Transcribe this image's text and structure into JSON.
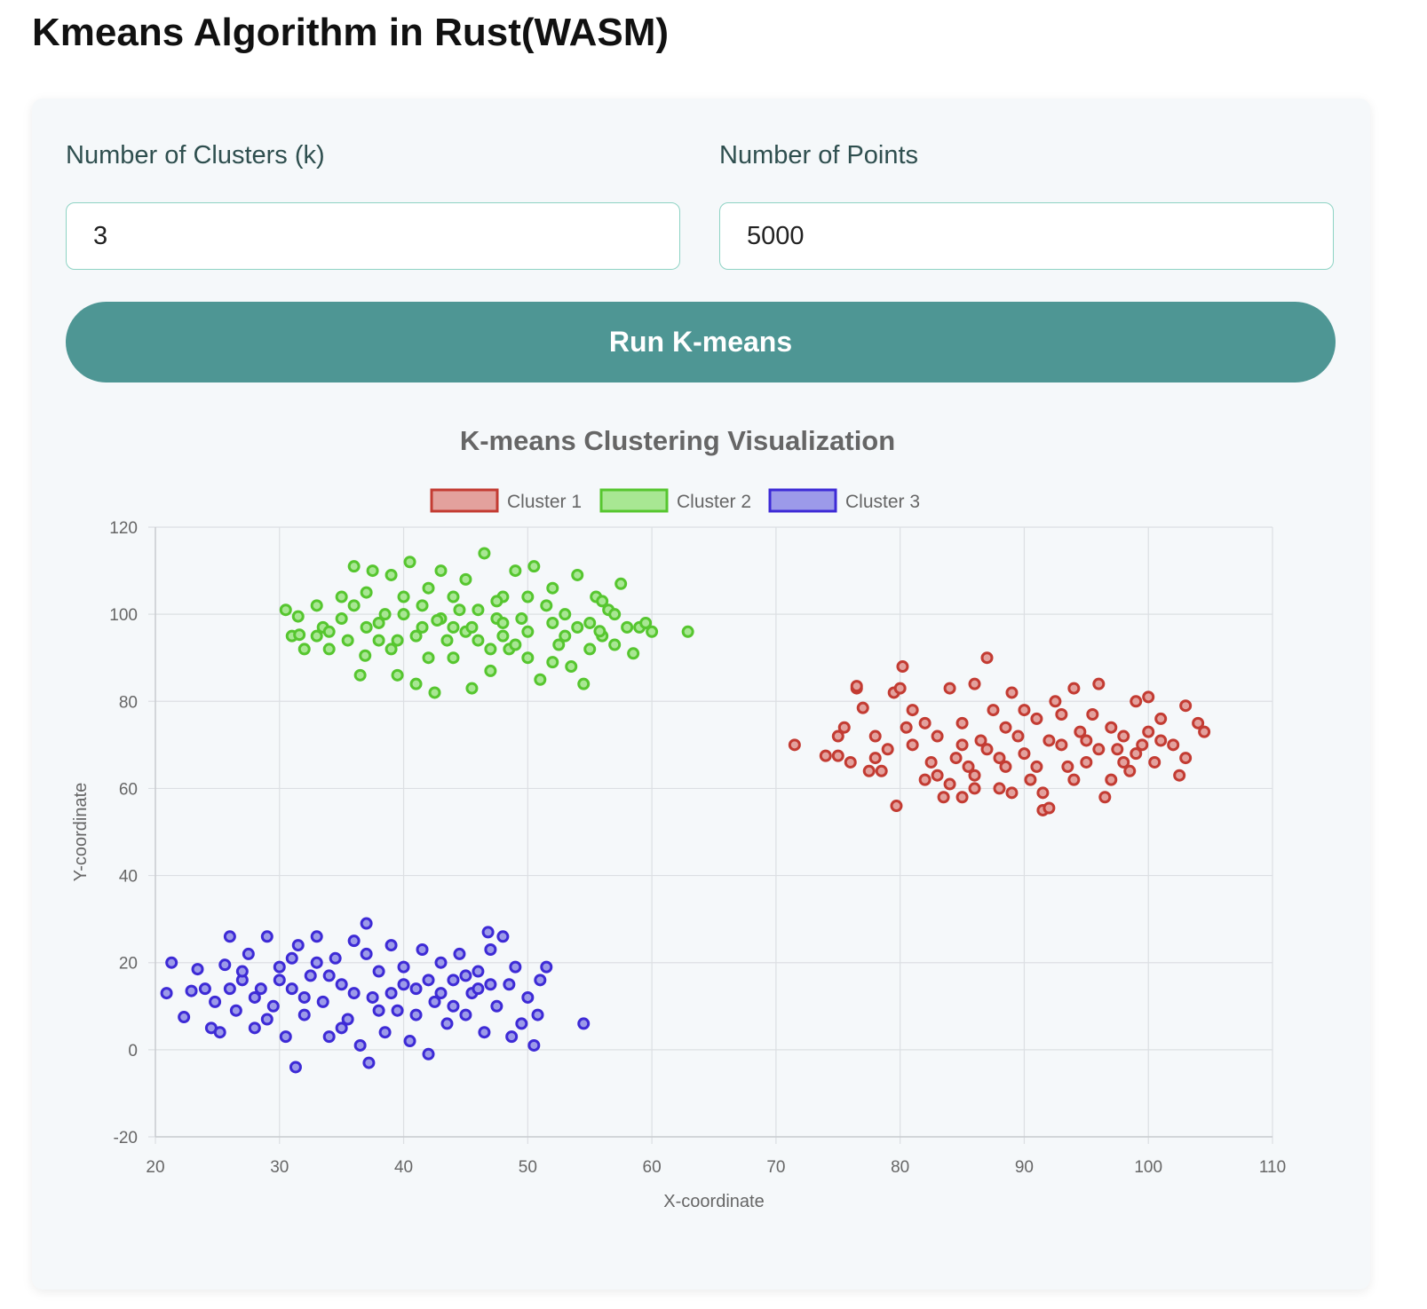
{
  "page": {
    "title": "Kmeans Algorithm in Rust(WASM)"
  },
  "form": {
    "clusters_label": "Number of Clusters (k)",
    "clusters_value": "3",
    "points_label": "Number of Points",
    "points_value": "5000",
    "run_label": "Run K-means"
  },
  "colors": {
    "accent": "#4e9694",
    "input_border": "#8ed3c4",
    "card_bg": "#f5f8fa"
  },
  "chart_data": {
    "type": "scatter",
    "title": "K-means Clustering Visualization",
    "xlabel": "X-coordinate",
    "ylabel": "Y-coordinate",
    "xlim": [
      20,
      110
    ],
    "ylim": [
      -20,
      120
    ],
    "xticks": [
      20,
      30,
      40,
      50,
      60,
      70,
      80,
      90,
      100,
      110
    ],
    "yticks": [
      -20,
      0,
      20,
      40,
      60,
      80,
      100,
      120
    ],
    "grid": true,
    "legend_position": "top-center",
    "series": [
      {
        "name": "Cluster 1",
        "stroke": "#c33b32",
        "fill": "#e3a19d",
        "points": [
          [
            71.5,
            70
          ],
          [
            74,
            67.5
          ],
          [
            75,
            67.5
          ],
          [
            76,
            66
          ],
          [
            76.5,
            83
          ],
          [
            76.5,
            83.5
          ],
          [
            75,
            72
          ],
          [
            75.5,
            74
          ],
          [
            77,
            78.5
          ],
          [
            77.5,
            64
          ],
          [
            78.5,
            64
          ],
          [
            79.5,
            82
          ],
          [
            80,
            83
          ],
          [
            80.2,
            88
          ],
          [
            79.7,
            56
          ],
          [
            81,
            78
          ],
          [
            82,
            75
          ],
          [
            83,
            72
          ],
          [
            84,
            83
          ],
          [
            85,
            70
          ],
          [
            85.5,
            65
          ],
          [
            86,
            84
          ],
          [
            87,
            90
          ],
          [
            87.5,
            78
          ],
          [
            88,
            60
          ],
          [
            88.5,
            74
          ],
          [
            89,
            82
          ],
          [
            90,
            68
          ],
          [
            90.5,
            62
          ],
          [
            91,
            76
          ],
          [
            91.5,
            55
          ],
          [
            92,
            55.5
          ],
          [
            92.5,
            80
          ],
          [
            93,
            70
          ],
          [
            94,
            83
          ],
          [
            95,
            66
          ],
          [
            96,
            84
          ],
          [
            96.5,
            58
          ],
          [
            97,
            62
          ],
          [
            98,
            72
          ],
          [
            99,
            80
          ],
          [
            100,
            81
          ],
          [
            101,
            76
          ],
          [
            102,
            70
          ],
          [
            102.5,
            63
          ],
          [
            103,
            79
          ],
          [
            104,
            75
          ],
          [
            104.5,
            73
          ],
          [
            103,
            67
          ],
          [
            100.5,
            66
          ],
          [
            99.5,
            70
          ],
          [
            98.5,
            64
          ],
          [
            97.5,
            69
          ],
          [
            95.5,
            77
          ],
          [
            94.5,
            73
          ],
          [
            93.5,
            65
          ],
          [
            92,
            71
          ],
          [
            89.5,
            72
          ],
          [
            88,
            67
          ],
          [
            86.5,
            71
          ],
          [
            85,
            75
          ],
          [
            84,
            61
          ],
          [
            83.5,
            58
          ],
          [
            82.5,
            66
          ],
          [
            81,
            70
          ],
          [
            80.5,
            74
          ],
          [
            79,
            69
          ],
          [
            78,
            67
          ],
          [
            78,
            72
          ],
          [
            82,
            62
          ],
          [
            84.5,
            67
          ],
          [
            86,
            63
          ],
          [
            87,
            69
          ],
          [
            88.5,
            65
          ],
          [
            90,
            78
          ],
          [
            91,
            65
          ],
          [
            93,
            77
          ],
          [
            94,
            62
          ],
          [
            95,
            71
          ],
          [
            96,
            69
          ],
          [
            97,
            74
          ],
          [
            98,
            66
          ],
          [
            99,
            68
          ],
          [
            100,
            73
          ],
          [
            101,
            71
          ],
          [
            91.5,
            59
          ],
          [
            89,
            59
          ],
          [
            86,
            60
          ],
          [
            85,
            58
          ],
          [
            83,
            63
          ]
        ]
      },
      {
        "name": "Cluster 2",
        "stroke": "#56c62f",
        "fill": "#a8e793",
        "points": [
          [
            30.5,
            101
          ],
          [
            31,
            95
          ],
          [
            31.5,
            99.5
          ],
          [
            32,
            92
          ],
          [
            33,
            102
          ],
          [
            33.5,
            97
          ],
          [
            34,
            92
          ],
          [
            35,
            104
          ],
          [
            35.5,
            94
          ],
          [
            36,
            111
          ],
          [
            36.5,
            86
          ],
          [
            37,
            105
          ],
          [
            37.5,
            110
          ],
          [
            38,
            98
          ],
          [
            38.5,
            100
          ],
          [
            39,
            109
          ],
          [
            39.5,
            86
          ],
          [
            40,
            104
          ],
          [
            40.5,
            112
          ],
          [
            41,
            84
          ],
          [
            41.5,
            97
          ],
          [
            42,
            106
          ],
          [
            42.5,
            82
          ],
          [
            43,
            110
          ],
          [
            44,
            90
          ],
          [
            44.5,
            101
          ],
          [
            45,
            108
          ],
          [
            45.5,
            83
          ],
          [
            46,
            94
          ],
          [
            46.5,
            114
          ],
          [
            47,
            87
          ],
          [
            47.5,
            99
          ],
          [
            48,
            104
          ],
          [
            48.5,
            92
          ],
          [
            49,
            110
          ],
          [
            50,
            96
          ],
          [
            50.5,
            111
          ],
          [
            51,
            85
          ],
          [
            52,
            106
          ],
          [
            52.5,
            93
          ],
          [
            53,
            100
          ],
          [
            53.5,
            88
          ],
          [
            54,
            109
          ],
          [
            54.5,
            84
          ],
          [
            55,
            98
          ],
          [
            55.5,
            104
          ],
          [
            56,
            95
          ],
          [
            56.5,
            101
          ],
          [
            57,
            93
          ],
          [
            57.5,
            107
          ],
          [
            58,
            97
          ],
          [
            59,
            97
          ],
          [
            59.5,
            98
          ],
          [
            60,
            96
          ],
          [
            58.5,
            91
          ],
          [
            56,
            103
          ],
          [
            54,
            97
          ],
          [
            51.5,
            102
          ],
          [
            49.5,
            99
          ],
          [
            47,
            92
          ],
          [
            45,
            96
          ],
          [
            43,
            99
          ],
          [
            41,
            95
          ],
          [
            39,
            92
          ],
          [
            37,
            97
          ],
          [
            35,
            99
          ],
          [
            34,
            96
          ],
          [
            33,
            95
          ],
          [
            38,
            94
          ],
          [
            42,
            90
          ],
          [
            44,
            104
          ],
          [
            46,
            101
          ],
          [
            48,
            95
          ],
          [
            50,
            90
          ],
          [
            52,
            98
          ],
          [
            53,
            95
          ],
          [
            55,
            92
          ],
          [
            57,
            100
          ],
          [
            36,
            102
          ],
          [
            40,
            100
          ],
          [
            41.5,
            102
          ],
          [
            43.5,
            94
          ],
          [
            45.5,
            97
          ],
          [
            47.5,
            103
          ],
          [
            49,
            93
          ],
          [
            50,
            104
          ],
          [
            52,
            89
          ],
          [
            39.5,
            94
          ],
          [
            44,
            97
          ],
          [
            48,
            98
          ],
          [
            62.9,
            96
          ],
          [
            31.6,
            95.3
          ],
          [
            55.8,
            96.1
          ],
          [
            36.9,
            90.5
          ],
          [
            42.7,
            98.6
          ]
        ]
      },
      {
        "name": "Cluster 3",
        "stroke": "#3d2ad6",
        "fill": "#9c9ae9",
        "points": [
          [
            20.9,
            13
          ],
          [
            21.3,
            20
          ],
          [
            22.3,
            7.5
          ],
          [
            22.9,
            13.5
          ],
          [
            23.4,
            18.5
          ],
          [
            24,
            14
          ],
          [
            24.5,
            5
          ],
          [
            24.8,
            11
          ],
          [
            25.2,
            4
          ],
          [
            25.6,
            19.5
          ],
          [
            26,
            26
          ],
          [
            26.5,
            9
          ],
          [
            27,
            16
          ],
          [
            27.5,
            22
          ],
          [
            28,
            5
          ],
          [
            28.5,
            14
          ],
          [
            29,
            26
          ],
          [
            29.5,
            10
          ],
          [
            30,
            19
          ],
          [
            30.5,
            3
          ],
          [
            31,
            14
          ],
          [
            31.3,
            -4
          ],
          [
            31.5,
            24
          ],
          [
            32,
            8
          ],
          [
            32.5,
            17
          ],
          [
            33,
            26
          ],
          [
            33.5,
            11
          ],
          [
            34,
            3
          ],
          [
            34.5,
            21
          ],
          [
            35,
            15
          ],
          [
            35.5,
            7
          ],
          [
            36,
            25
          ],
          [
            36.5,
            1
          ],
          [
            37,
            29
          ],
          [
            37.2,
            -3
          ],
          [
            37.5,
            12
          ],
          [
            38,
            18
          ],
          [
            38.5,
            4
          ],
          [
            39,
            24
          ],
          [
            39.5,
            9
          ],
          [
            40,
            19
          ],
          [
            40.5,
            2
          ],
          [
            41,
            14
          ],
          [
            41.5,
            23
          ],
          [
            42,
            -1
          ],
          [
            42.5,
            11
          ],
          [
            43,
            20
          ],
          [
            43.5,
            6
          ],
          [
            44,
            16
          ],
          [
            44.5,
            22
          ],
          [
            45,
            8
          ],
          [
            45.5,
            13
          ],
          [
            46,
            18
          ],
          [
            46.5,
            4
          ],
          [
            46.8,
            27
          ],
          [
            47,
            23
          ],
          [
            47.5,
            10
          ],
          [
            48,
            26
          ],
          [
            48.5,
            15
          ],
          [
            48.7,
            3
          ],
          [
            49,
            19
          ],
          [
            49.5,
            6
          ],
          [
            50,
            12
          ],
          [
            50.5,
            1
          ],
          [
            50.8,
            8
          ],
          [
            51,
            16
          ],
          [
            51.5,
            19
          ],
          [
            54.5,
            6
          ],
          [
            28,
            12
          ],
          [
            30,
            16
          ],
          [
            32,
            12
          ],
          [
            34,
            17
          ],
          [
            36,
            13
          ],
          [
            38,
            9
          ],
          [
            40,
            15
          ],
          [
            42,
            16
          ],
          [
            44,
            10
          ],
          [
            46,
            14
          ],
          [
            33,
            20
          ],
          [
            37,
            22
          ],
          [
            41,
            8
          ],
          [
            45,
            17
          ],
          [
            35,
            5
          ],
          [
            39,
            13
          ],
          [
            43,
            13
          ],
          [
            27,
            18
          ],
          [
            29,
            7
          ],
          [
            31,
            21
          ],
          [
            47,
            15
          ],
          [
            26,
            14
          ]
        ]
      }
    ]
  }
}
